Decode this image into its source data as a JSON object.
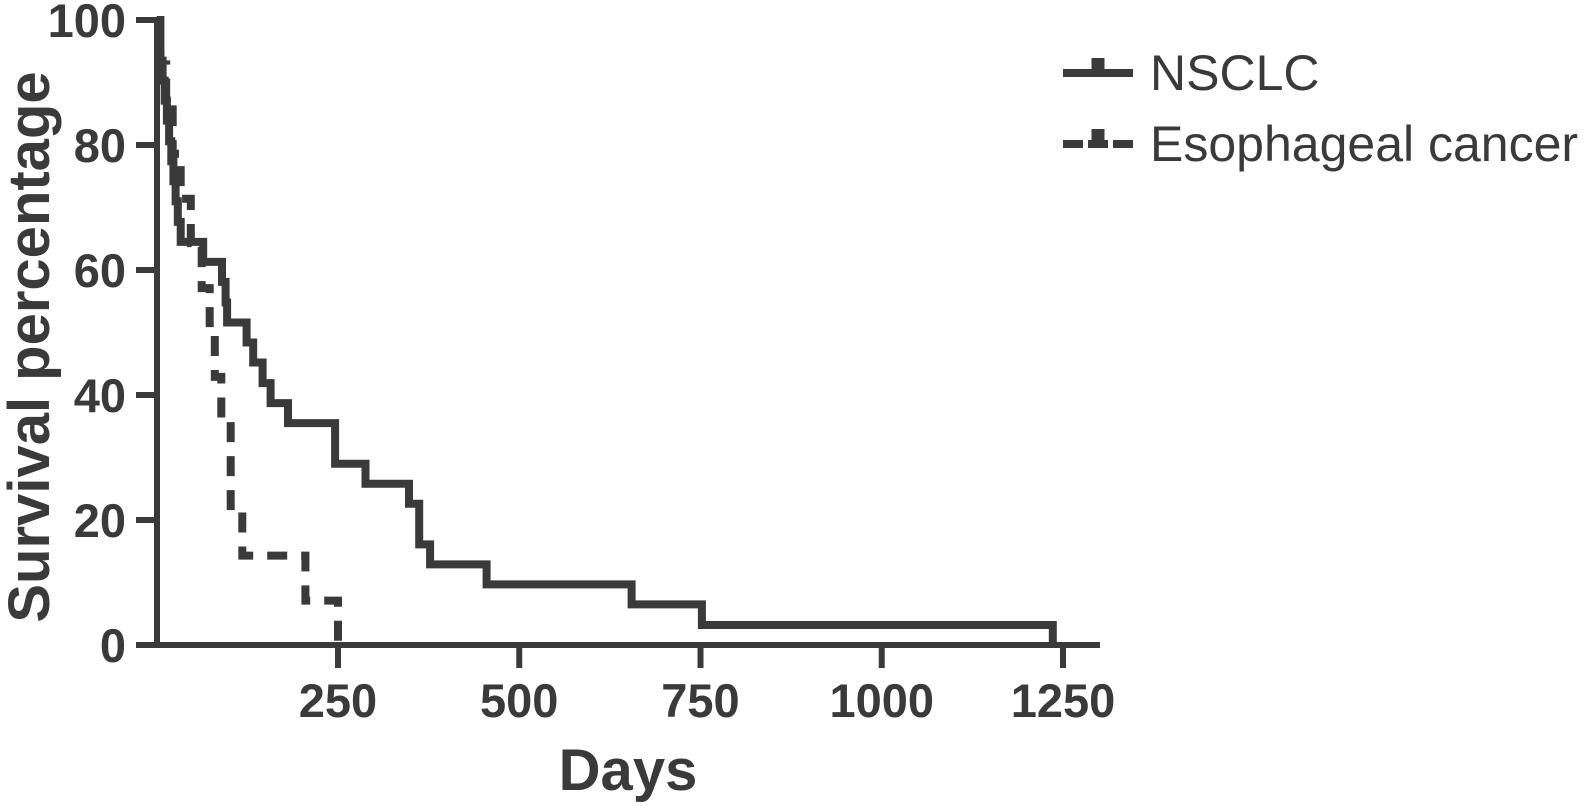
{
  "figure": {
    "kind": "kaplan-meier-survival-plot",
    "background": "#ffffff",
    "ink_color": "#3a3a3a"
  },
  "chart_data": {
    "type": "line",
    "subtype": "kaplan-meier-step",
    "title": "",
    "xlabel": "Days",
    "ylabel": "Survival percentage",
    "xlim": [
      0,
      1300
    ],
    "ylim": [
      0,
      100
    ],
    "x_ticks": [
      250,
      500,
      750,
      1000,
      1250
    ],
    "y_ticks": [
      0,
      20,
      40,
      60,
      80,
      100
    ],
    "grid": false,
    "legend_position": "top-right",
    "line_color": "#3a3a3a",
    "series": [
      {
        "name": "NSCLC",
        "style": "solid",
        "steps_days_percent": [
          [
            0,
            100
          ],
          [
            2,
            96.8
          ],
          [
            5,
            93.5
          ],
          [
            8,
            90.3
          ],
          [
            11,
            87.1
          ],
          [
            14,
            83.9
          ],
          [
            17,
            80.6
          ],
          [
            20,
            77.4
          ],
          [
            23,
            74.2
          ],
          [
            26,
            71.0
          ],
          [
            29,
            67.7
          ],
          [
            33,
            64.5
          ],
          [
            64,
            61.3
          ],
          [
            90,
            58.1
          ],
          [
            95,
            54.8
          ],
          [
            97,
            51.6
          ],
          [
            124,
            48.4
          ],
          [
            133,
            45.2
          ],
          [
            146,
            41.9
          ],
          [
            157,
            38.7
          ],
          [
            181,
            35.5
          ],
          [
            246,
            29.0
          ],
          [
            288,
            25.8
          ],
          [
            348,
            22.6
          ],
          [
            362,
            16.1
          ],
          [
            377,
            12.9
          ],
          [
            455,
            9.7
          ],
          [
            655,
            6.5
          ],
          [
            752,
            3.2
          ],
          [
            1236,
            0
          ]
        ]
      },
      {
        "name": "Esophageal cancer",
        "style": "dashed",
        "steps_days_percent": [
          [
            0,
            100
          ],
          [
            5,
            92.9
          ],
          [
            13,
            85.7
          ],
          [
            22,
            78.6
          ],
          [
            33,
            71.4
          ],
          [
            47,
            64.3
          ],
          [
            62,
            57.1
          ],
          [
            73,
            50.0
          ],
          [
            80,
            42.9
          ],
          [
            89,
            35.7
          ],
          [
            102,
            21.4
          ],
          [
            118,
            14.3
          ],
          [
            205,
            7.1
          ],
          [
            250,
            0
          ]
        ]
      }
    ]
  }
}
